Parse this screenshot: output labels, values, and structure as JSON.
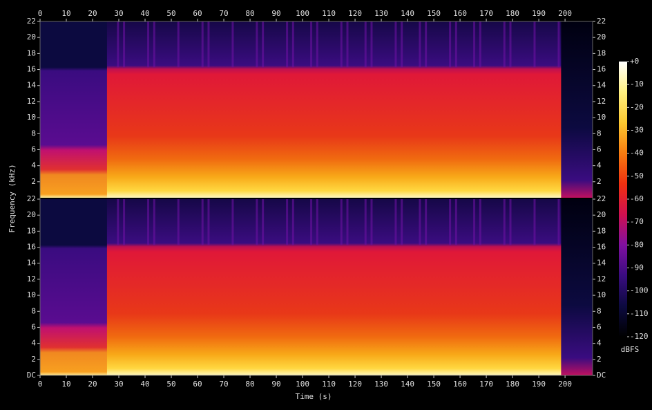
{
  "chart_data": {
    "type": "spectrogram",
    "xlabel": "Time (s)",
    "ylabel": "Frequency (kHz)",
    "xlim": [
      0,
      210.5
    ],
    "xticks": [
      0,
      10,
      20,
      30,
      40,
      50,
      60,
      70,
      80,
      90,
      100,
      110,
      120,
      130,
      140,
      150,
      160,
      170,
      180,
      190,
      200
    ],
    "panels": [
      {
        "ylim": [
          0,
          22
        ],
        "yticks": [
          2,
          4,
          6,
          8,
          10,
          12,
          14,
          16,
          18,
          20,
          22
        ]
      },
      {
        "ylim": [
          0,
          22
        ],
        "yticks": [
          {
            "value": 0,
            "label": "DC"
          },
          2,
          4,
          6,
          8,
          10,
          12,
          14,
          16,
          18,
          20,
          22
        ]
      }
    ],
    "colorbar": {
      "label": "dBFS",
      "lim": [
        -120,
        0
      ],
      "ticks": [
        {
          "value": 0,
          "label": "+0"
        },
        -10,
        -20,
        -30,
        -40,
        -50,
        -60,
        -70,
        -80,
        -90,
        -100,
        -110,
        -120
      ],
      "colors": [
        "#000000",
        "#0c0a40",
        "#3a0c80",
        "#8010a0",
        "#d01050",
        "#f03010",
        "#f87c10",
        "#fcc830",
        "#fff080",
        "#ffffff"
      ]
    }
  }
}
